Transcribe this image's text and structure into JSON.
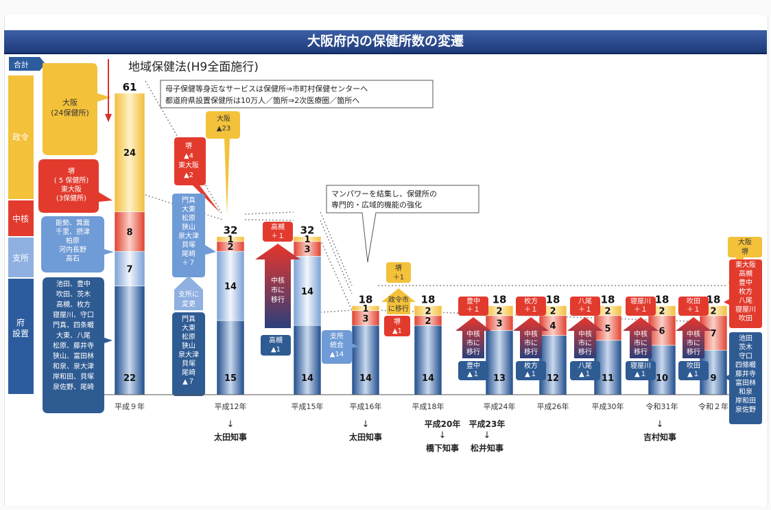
{
  "title": "大阪府内の保健所数の変遷",
  "colors": {
    "title_bar": "#2d4d8f",
    "seirei": "#f3c13a",
    "chukaku": "#e23b2e",
    "shisho": "#8fb0e0",
    "fu": "#2c5c9e"
  },
  "headline": "地域保健法(H9全面施行)",
  "notes": {
    "top_lines": [
      "母子保健等身近なサービスは保健所⇒市町村保健センターへ",
      "都道府県設置保健所は10万人／箇所⇒2次医療圏／箇所へ"
    ],
    "mid_lines": [
      "マンパワーを結集し、保健所の",
      "専門的・広域的機能の強化"
    ]
  },
  "legend": {
    "total": "合計",
    "categories": [
      "政令",
      "中核",
      "支所",
      "府\n設置"
    ]
  },
  "left_boxes": {
    "seirei": "大阪\n(24保健所)",
    "chukaku": "堺\n( 5 保健所)\n東大阪\n(3保健所)",
    "shisho": "能勢、箕面\n千里、摂津\n柏原\n河内長野\n高石",
    "fu": "池田、豊中\n吹田、茨木\n高槻、枚方\n寝屋川、守口\n門真、四条畷\n大東、八尾\n松原、藤井寺\n狭山、富田林\n和泉、泉大津\n岸和田、貝塚\n泉佐野、尾崎"
  },
  "callouts": {
    "sakai_higashiosaka": "堺\n▲4\n東大阪\n▲2",
    "osaka23": "大阪\n▲23",
    "h12_list": "門真\n大東\n松原\n狭山\n泉大津\n貝塚\n尾崎\n＋７",
    "h12_change": "支所に\n変更",
    "h12_list_minus": "門真\n大東\n松原\n狭山\n泉大津\n貝塚\n尾崎\n▲７",
    "takatsuki_plus": "高槻\n＋１",
    "chukaku_move": "中核\n市に\n移行",
    "takatsuki_minus": "高槻\n▲1",
    "shisho_merge": "支所\n統合\n▲14",
    "sakai_plus": "堺\n＋1",
    "seirei_move": "政令市\nに移行",
    "sakai_minus": "堺\n▲1",
    "toyonaka_plus": "豊中\n＋１",
    "toyonaka_minus": "豊中\n▲１",
    "hirakata_plus": "枚方\n＋１",
    "hirakata_minus": "枚方\n▲１",
    "yao_plus": "八尾\n＋１",
    "yao_minus": "八尾\n▲１",
    "neyagawa_plus": "寝屋川\n＋１",
    "neyagawa_minus": "寝屋川\n▲１",
    "suita_plus": "吹田\n＋１",
    "suita_minus": "吹田\n▲１",
    "r2_seirei": "大阪\n堺",
    "r2_chukaku": "東大阪\n高槻\n豊中\n枚方\n八尾\n寝屋川\n吹田",
    "r2_fu": "池田\n茨木\n守口\n四條畷\n藤井寺\n富田林\n和泉\n岸和田\n泉佐野"
  },
  "governors": [
    {
      "era": "",
      "name": "太田知事"
    },
    {
      "era": "",
      "name": "太田知事"
    },
    {
      "era": "平成20年",
      "name": "橋下知事"
    },
    {
      "era": "平成23年",
      "name": "松井知事"
    },
    {
      "era": "",
      "name": "吉村知事"
    }
  ],
  "arrow_char": "↓",
  "chart_data": {
    "type": "bar",
    "stacked": true,
    "title": "大阪府内の保健所数の変遷",
    "categories": [
      "平成９年",
      "平成12年",
      "平成15年",
      "平成16年",
      "平成18年",
      "平成24年",
      "平成26年",
      "平成30年",
      "令和31年",
      "令和２年"
    ],
    "series": [
      {
        "name": "府設置",
        "values": [
          22,
          15,
          14,
          14,
          14,
          13,
          12,
          11,
          10,
          9
        ]
      },
      {
        "name": "支所",
        "values": [
          7,
          14,
          14,
          0,
          0,
          0,
          0,
          0,
          0,
          0
        ]
      },
      {
        "name": "中核",
        "values": [
          8,
          2,
          3,
          3,
          2,
          3,
          4,
          5,
          6,
          7
        ]
      },
      {
        "name": "政令",
        "values": [
          24,
          1,
          1,
          1,
          2,
          2,
          2,
          2,
          2,
          2
        ]
      }
    ],
    "totals": [
      61,
      32,
      32,
      18,
      18,
      18,
      18,
      18,
      18,
      18
    ],
    "xlabel": "",
    "ylabel": ""
  }
}
